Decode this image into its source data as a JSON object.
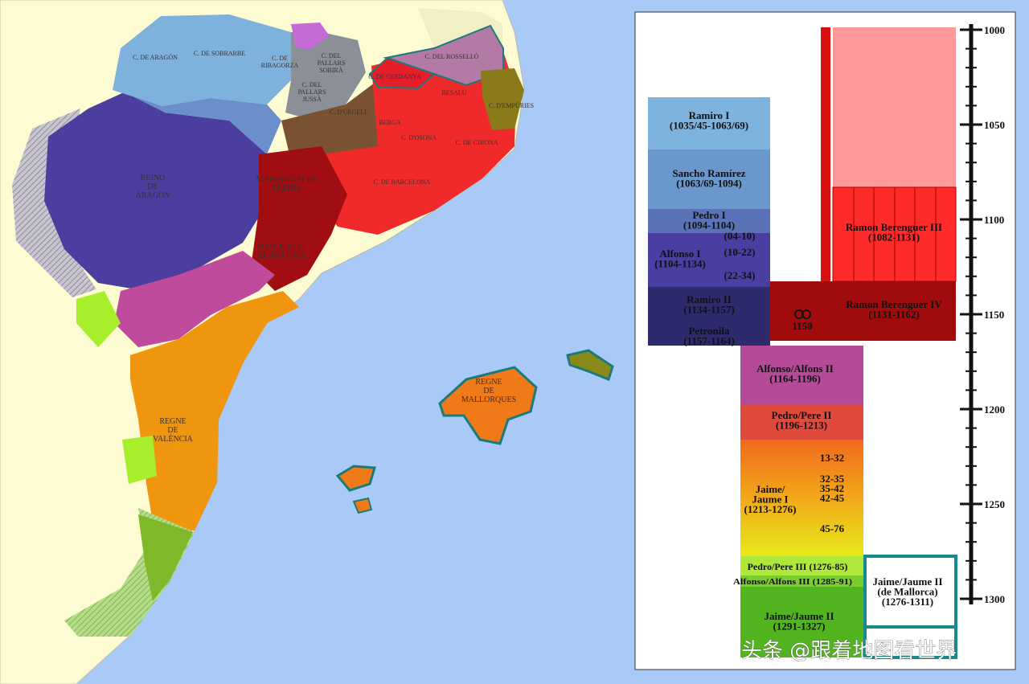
{
  "map": {
    "labels": [
      [
        "C. DE ARAGÓN"
      ],
      [
        "C. DE SOBRARBE"
      ],
      [
        "C. DE",
        "RIBAGORZA"
      ],
      [
        "C. DEL",
        "PALLARS",
        "SOBIRÀ"
      ],
      [
        "C. DEL",
        "PALLARS",
        "JUSSÀ"
      ],
      [
        "C. D'URGELL"
      ],
      [
        "C. DE CERDANYA"
      ],
      [
        "C. DEL ROSSELLÓ"
      ],
      [
        "BESALÚ"
      ],
      [
        "C. D'EMPÚRIES"
      ],
      [
        "BERGA"
      ],
      [
        "C. D'OSONA"
      ],
      [
        "C. DE GIRONA"
      ],
      [
        "C. DE BARCELONA"
      ],
      [
        "REINO",
        "DE",
        "ARAGÓN"
      ],
      [
        "MARQUESAT DE",
        "LLEIDA"
      ],
      [
        "MARQUESAT",
        "DE TORTOSA"
      ],
      [
        "REGNE",
        "DE",
        "VALÈNCIA"
      ],
      [
        "REGNE",
        "DE",
        "MALLORQUES"
      ]
    ]
  },
  "timeline": {
    "ticks": [
      1000,
      1050,
      1100,
      1150,
      1200,
      1250,
      1300
    ],
    "labels": [
      [
        "Ramiro I",
        "(1035/45-1063/69)"
      ],
      [
        "Sancho Ramírez",
        "(1063/69-1094)"
      ],
      [
        "Pedro I",
        "(1094-1104)"
      ],
      [
        "Alfonso I",
        "(1104-1134)"
      ],
      [
        "(04-10)"
      ],
      [
        "(10-22)"
      ],
      [
        "(22-34)"
      ],
      [
        "Ramiro II",
        "(1134-1157)"
      ],
      [
        "Petronila",
        "(1157-1164)"
      ],
      [
        "Ramon Berenguer III",
        "(1082-1131)"
      ],
      [
        "Ramon Berenguer IV",
        "(1131-1162)"
      ],
      [
        "1150"
      ],
      [
        "Alfonso/Alfons II",
        "(1164-1196)"
      ],
      [
        "Pedro/Pere II",
        "(1196-1213)"
      ],
      [
        "Jaime/",
        "Jaume I",
        "(1213-1276)"
      ],
      [
        "13-32"
      ],
      [
        "32-35"
      ],
      [
        "35-42"
      ],
      [
        "42-45"
      ],
      [
        "45-76"
      ],
      [
        "Pedro/Pere III (1276-85)"
      ],
      [
        "Alfonso/Alfons III (1285-91)"
      ],
      [
        "Jaime/Jaume II",
        "(1291-1327)"
      ],
      [
        "Jaime/Jaume II",
        "(de Mallorca)",
        "(1276-1311)"
      ]
    ]
  },
  "watermark": "头条 @跟着地图看世界"
}
